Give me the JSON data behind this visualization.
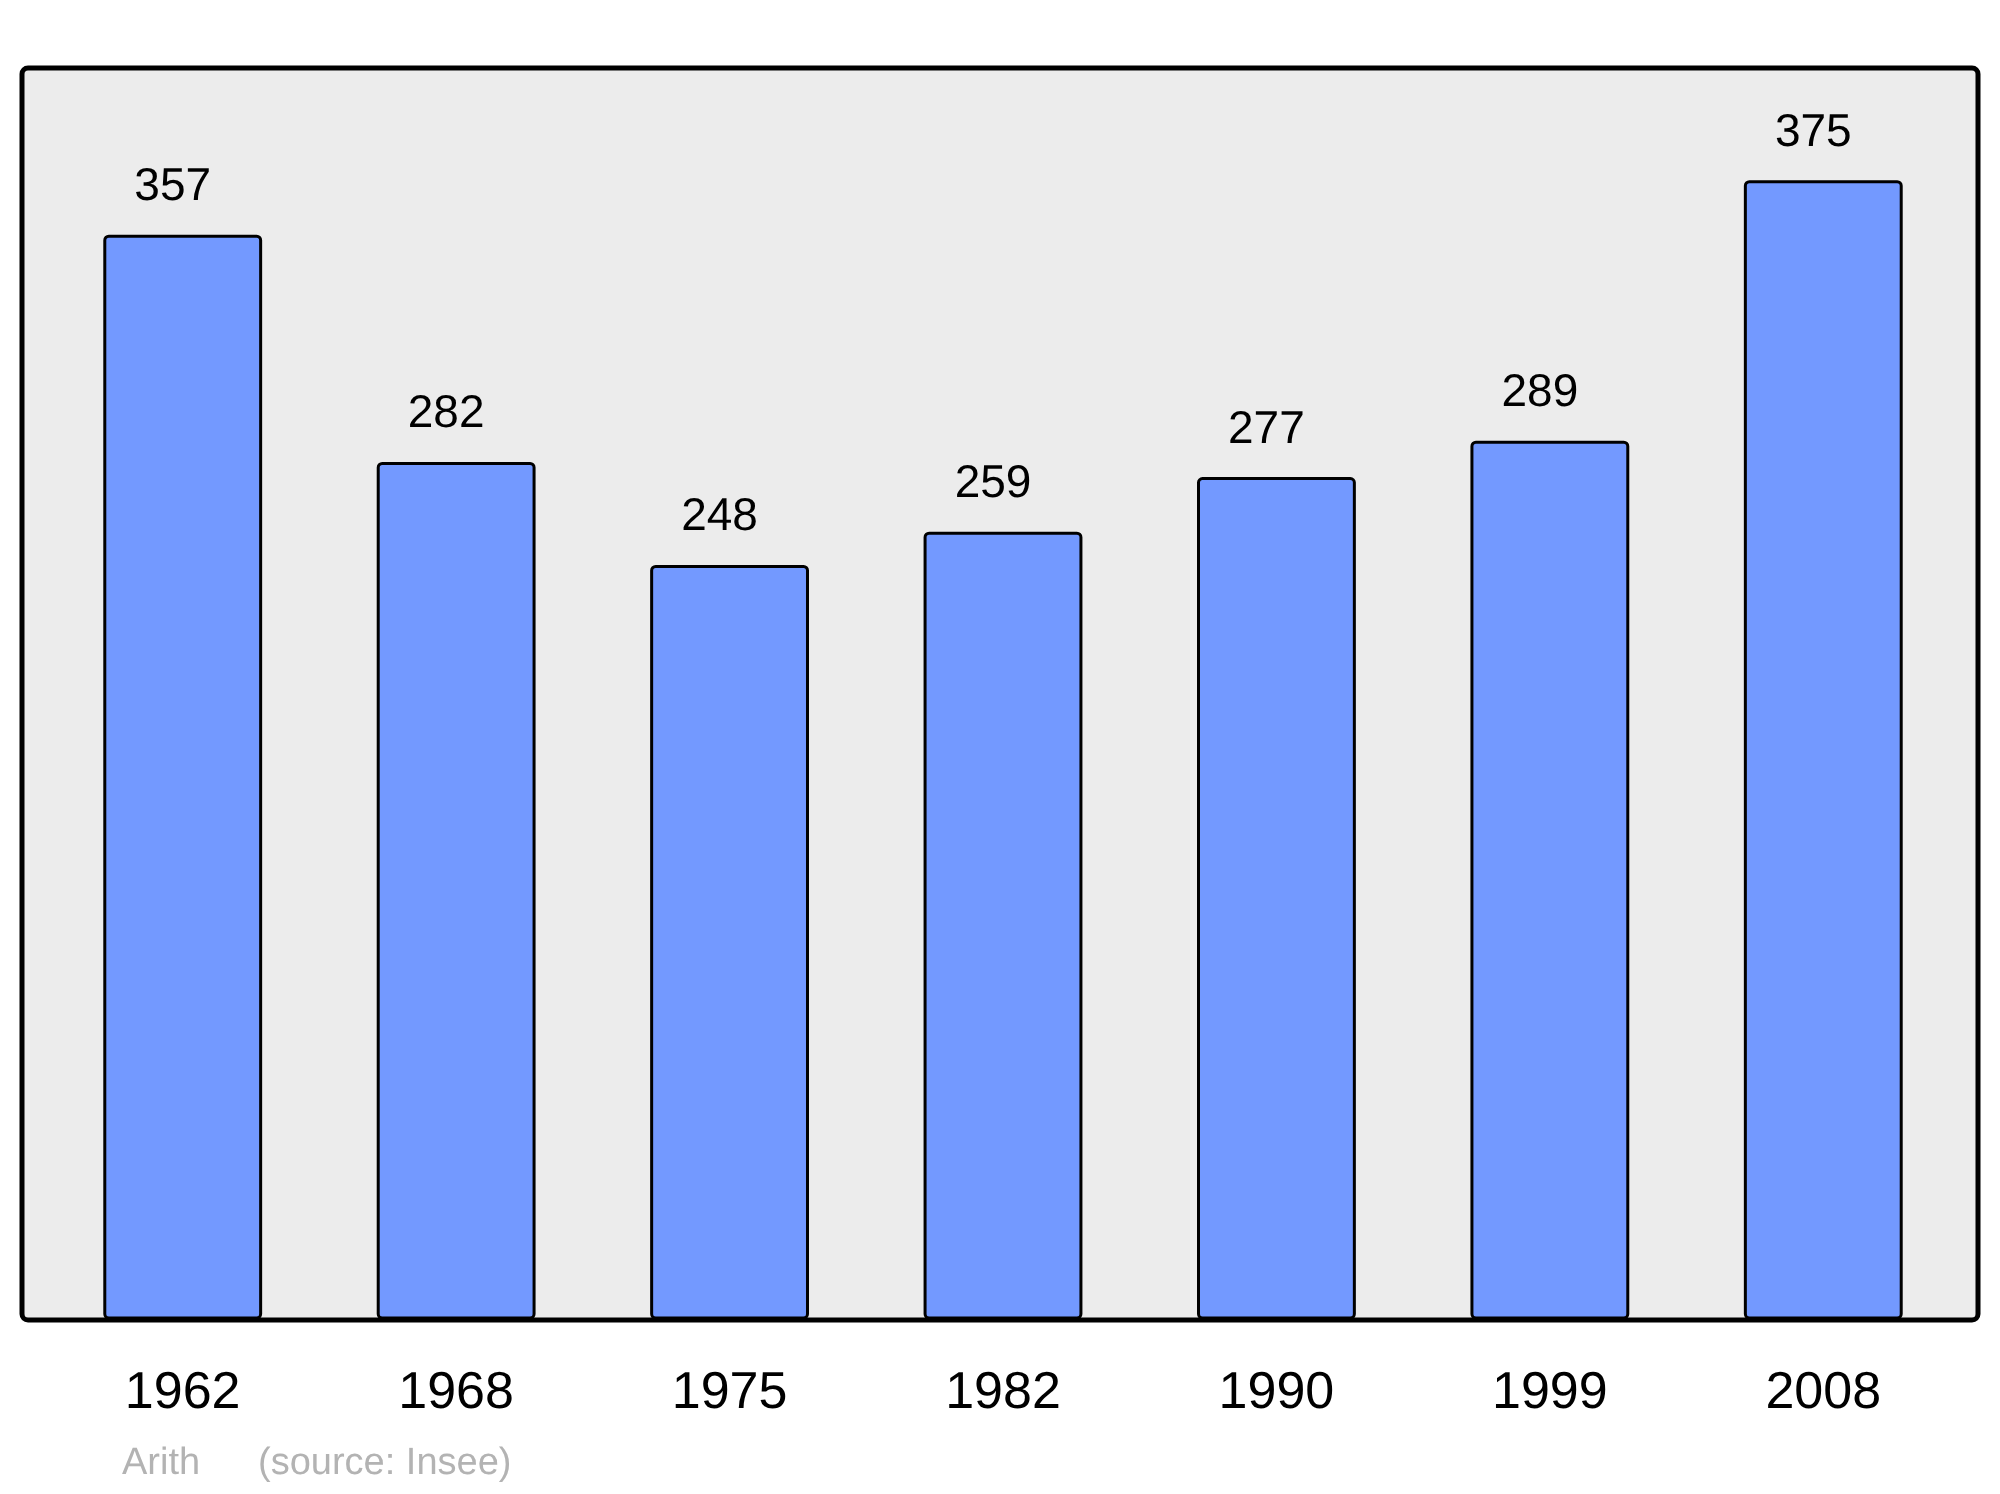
{
  "chart_data": {
    "type": "bar",
    "categories": [
      "1962",
      "1968",
      "1975",
      "1982",
      "1990",
      "1999",
      "2008"
    ],
    "values": [
      357,
      282,
      248,
      259,
      277,
      289,
      375
    ],
    "color": "#7399ff",
    "data_labels": true,
    "annotations": [
      "Arith",
      "(source: Insee)"
    ]
  }
}
